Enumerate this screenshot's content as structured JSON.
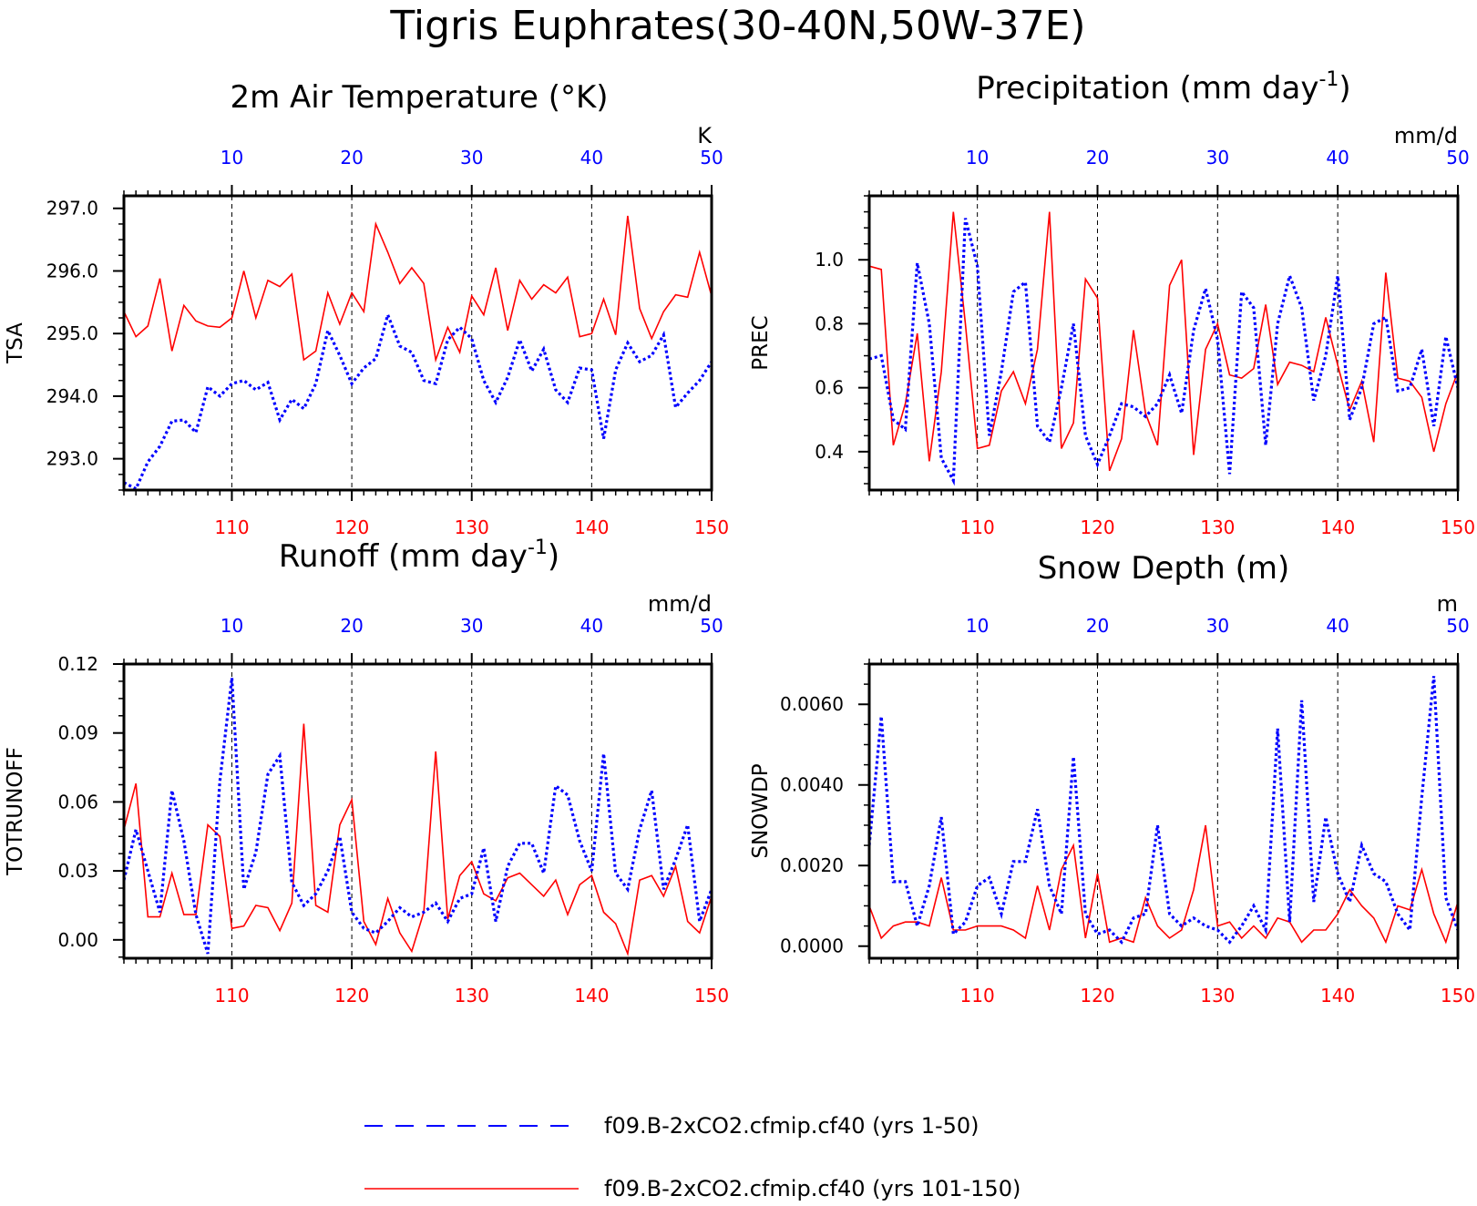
{
  "figure": {
    "title": "Tigris Euphrates(30-40N,50W-37E)",
    "legend": [
      {
        "label": "f09.B-2xCO2.cfmip.cf40 (yrs 1-50)",
        "color": "#0000ff",
        "style": "dashed"
      },
      {
        "label": "f09.B-2xCO2.cfmip.cf40 (yrs 101-150)",
        "color": "#ff0000",
        "style": "solid"
      }
    ],
    "colors": {
      "series_a": "#0000ff",
      "series_b": "#ff0000",
      "axis": "#000000"
    }
  },
  "chart_data": [
    {
      "type": "line",
      "title": "2m Air Temperature (°K)",
      "units_label": "K",
      "ylabel": "TSA",
      "ylim": [
        292.5,
        297.2
      ],
      "yticks": [
        293.0,
        294.0,
        295.0,
        296.0,
        297.0
      ],
      "ytick_labels": [
        "293.0",
        "294.0",
        "295.0",
        "296.0",
        "297.0"
      ],
      "top_axis": {
        "range": [
          1,
          50
        ],
        "ticks": [
          10,
          20,
          30,
          40,
          50
        ],
        "color": "#0000ff"
      },
      "bottom_axis": {
        "range": [
          101,
          150
        ],
        "ticks": [
          110,
          120,
          130,
          140,
          150
        ],
        "color": "#ff0000"
      },
      "grid": "dashed vertical at top ticks",
      "series": [
        {
          "name": "f09.B-2xCO2.cfmip.cf40 (yrs 1-50)",
          "x": "1-50",
          "values": [
            292.62,
            292.52,
            292.95,
            293.2,
            293.6,
            293.62,
            293.42,
            294.15,
            294.0,
            294.2,
            294.25,
            294.1,
            294.22,
            293.62,
            293.95,
            293.8,
            294.2,
            295.05,
            294.65,
            294.2,
            294.45,
            294.6,
            295.3,
            294.8,
            294.7,
            294.25,
            294.2,
            294.9,
            295.1,
            294.92,
            294.25,
            293.9,
            294.3,
            294.9,
            294.4,
            294.75,
            294.1,
            293.9,
            294.45,
            294.42,
            293.32,
            294.42,
            294.85,
            294.55,
            294.65,
            294.98,
            293.82,
            294.05,
            294.25,
            294.55
          ]
        },
        {
          "name": "f09.B-2xCO2.cfmip.cf40 (yrs 101-150)",
          "x": "101-150",
          "values": [
            295.35,
            294.95,
            295.12,
            295.88,
            294.72,
            295.45,
            295.2,
            295.12,
            295.1,
            295.25,
            296.0,
            295.25,
            295.85,
            295.75,
            295.95,
            294.58,
            294.72,
            295.65,
            295.15,
            295.65,
            295.35,
            296.75,
            296.3,
            295.8,
            296.05,
            295.8,
            294.58,
            295.1,
            294.7,
            295.6,
            295.3,
            296.05,
            295.05,
            295.85,
            295.55,
            295.78,
            295.65,
            295.9,
            294.95,
            295.0,
            295.55,
            294.98,
            296.88,
            295.4,
            294.92,
            295.35,
            295.62,
            295.58,
            296.3,
            295.6
          ]
        }
      ]
    },
    {
      "type": "line",
      "title": "Precipitation (mm day-1)",
      "units_label": "mm/d",
      "ylabel": "PREC",
      "ylim": [
        0.28,
        1.2
      ],
      "yticks": [
        0.4,
        0.6,
        0.8,
        1.0
      ],
      "ytick_labels": [
        "0.4",
        "0.6",
        "0.8",
        "1.0"
      ],
      "top_axis": {
        "range": [
          1,
          50
        ],
        "ticks": [
          10,
          20,
          30,
          40,
          50
        ],
        "color": "#0000ff"
      },
      "bottom_axis": {
        "range": [
          101,
          150
        ],
        "ticks": [
          110,
          120,
          130,
          140,
          150
        ],
        "color": "#ff0000"
      },
      "grid": "dashed vertical at top ticks",
      "series": [
        {
          "name": "f09.B-2xCO2.cfmip.cf40 (yrs 1-50)",
          "x": "1-50",
          "values": [
            0.69,
            0.7,
            0.5,
            0.47,
            0.99,
            0.8,
            0.38,
            0.31,
            1.13,
            0.98,
            0.45,
            0.65,
            0.9,
            0.93,
            0.48,
            0.43,
            0.6,
            0.8,
            0.45,
            0.36,
            0.45,
            0.55,
            0.54,
            0.51,
            0.55,
            0.64,
            0.52,
            0.78,
            0.91,
            0.75,
            0.33,
            0.9,
            0.85,
            0.42,
            0.8,
            0.95,
            0.85,
            0.56,
            0.7,
            0.95,
            0.5,
            0.6,
            0.8,
            0.82,
            0.59,
            0.6,
            0.72,
            0.48,
            0.76,
            0.6
          ]
        },
        {
          "name": "f09.B-2xCO2.cfmip.cf40 (yrs 101-150)",
          "x": "101-150",
          "values": [
            0.98,
            0.97,
            0.42,
            0.55,
            0.77,
            0.37,
            0.65,
            1.15,
            0.8,
            0.41,
            0.42,
            0.59,
            0.65,
            0.55,
            0.72,
            1.15,
            0.41,
            0.49,
            0.94,
            0.88,
            0.34,
            0.44,
            0.78,
            0.52,
            0.42,
            0.92,
            1.0,
            0.39,
            0.72,
            0.8,
            0.64,
            0.63,
            0.66,
            0.86,
            0.61,
            0.68,
            0.67,
            0.65,
            0.82,
            0.67,
            0.53,
            0.62,
            0.43,
            0.96,
            0.63,
            0.62,
            0.57,
            0.4,
            0.55,
            0.65
          ]
        }
      ]
    },
    {
      "type": "line",
      "title": "Runoff (mm day-1)",
      "units_label": "mm/d",
      "ylabel": "TOTRUNOFF",
      "ylim": [
        -0.008,
        0.12
      ],
      "yticks": [
        0.0,
        0.03,
        0.06,
        0.09,
        0.12
      ],
      "ytick_labels": [
        "0.00",
        "0.03",
        "0.06",
        "0.09",
        "0.12"
      ],
      "top_axis": {
        "range": [
          1,
          50
        ],
        "ticks": [
          10,
          20,
          30,
          40,
          50
        ],
        "color": "#0000ff"
      },
      "bottom_axis": {
        "range": [
          101,
          150
        ],
        "ticks": [
          110,
          120,
          130,
          140,
          150
        ],
        "color": "#ff0000"
      },
      "grid": "dashed vertical at top ticks",
      "series": [
        {
          "name": "f09.B-2xCO2.cfmip.cf40 (yrs 1-50)",
          "x": "1-50",
          "values": [
            0.026,
            0.048,
            0.03,
            0.012,
            0.065,
            0.043,
            0.011,
            -0.006,
            0.069,
            0.114,
            0.022,
            0.038,
            0.072,
            0.08,
            0.025,
            0.015,
            0.02,
            0.03,
            0.045,
            0.012,
            0.005,
            0.003,
            0.008,
            0.014,
            0.01,
            0.012,
            0.016,
            0.008,
            0.018,
            0.02,
            0.04,
            0.008,
            0.032,
            0.042,
            0.042,
            0.029,
            0.067,
            0.063,
            0.043,
            0.03,
            0.081,
            0.029,
            0.022,
            0.048,
            0.065,
            0.022,
            0.035,
            0.05,
            0.008,
            0.022
          ]
        },
        {
          "name": "f09.B-2xCO2.cfmip.cf40 (yrs 101-150)",
          "x": "101-150",
          "values": [
            0.048,
            0.068,
            0.01,
            0.01,
            0.029,
            0.011,
            0.011,
            0.05,
            0.045,
            0.005,
            0.006,
            0.015,
            0.014,
            0.004,
            0.016,
            0.094,
            0.015,
            0.012,
            0.05,
            0.061,
            0.008,
            -0.002,
            0.018,
            0.003,
            -0.005,
            0.012,
            0.082,
            0.009,
            0.028,
            0.034,
            0.02,
            0.017,
            0.027,
            0.029,
            0.024,
            0.019,
            0.026,
            0.011,
            0.024,
            0.028,
            0.012,
            0.007,
            -0.006,
            0.026,
            0.028,
            0.019,
            0.032,
            0.008,
            0.003,
            0.019
          ]
        }
      ]
    },
    {
      "type": "line",
      "title": "Snow Depth (m)",
      "units_label": "m",
      "ylabel": "SNOWDP",
      "ylim": [
        -0.0003,
        0.007
      ],
      "yticks": [
        0.0,
        0.002,
        0.004,
        0.006
      ],
      "ytick_labels": [
        "0.0000",
        "0.0020",
        "0.0040",
        "0.0060"
      ],
      "top_axis": {
        "range": [
          1,
          50
        ],
        "ticks": [
          10,
          20,
          30,
          40,
          50
        ],
        "color": "#0000ff"
      },
      "bottom_axis": {
        "range": [
          101,
          150
        ],
        "ticks": [
          110,
          120,
          130,
          140,
          150
        ],
        "color": "#ff0000"
      },
      "grid": "dashed vertical at top ticks",
      "series": [
        {
          "name": "f09.B-2xCO2.cfmip.cf40 (yrs 1-50)",
          "x": "1-50",
          "values": [
            0.0025,
            0.0057,
            0.0016,
            0.0016,
            0.0005,
            0.0015,
            0.0032,
            0.0003,
            0.0006,
            0.0015,
            0.0017,
            0.0008,
            0.0021,
            0.0021,
            0.0034,
            0.0015,
            0.0008,
            0.0047,
            0.0008,
            0.0003,
            0.0004,
            0.0001,
            0.0007,
            0.0008,
            0.003,
            0.0008,
            0.0005,
            0.0007,
            0.0005,
            0.0004,
            0.0001,
            0.0005,
            0.001,
            0.0004,
            0.0054,
            0.0006,
            0.0061,
            0.0011,
            0.0032,
            0.0018,
            0.0011,
            0.0025,
            0.0018,
            0.0016,
            0.0008,
            0.0004,
            0.0037,
            0.0067,
            0.0012,
            0.0004
          ]
        },
        {
          "name": "f09.B-2xCO2.cfmip.cf40 (yrs 101-150)",
          "x": "101-150",
          "values": [
            0.001,
            0.0002,
            0.0005,
            0.0006,
            0.0006,
            0.0005,
            0.0017,
            0.0004,
            0.0004,
            0.0005,
            0.0005,
            0.0005,
            0.0004,
            0.0002,
            0.0015,
            0.0004,
            0.0019,
            0.0025,
            0.0002,
            0.0018,
            0.0001,
            0.0002,
            0.0001,
            0.0012,
            0.0005,
            0.0002,
            0.0004,
            0.0014,
            0.003,
            0.0005,
            0.0006,
            0.0002,
            0.0005,
            0.0002,
            0.0007,
            0.0006,
            0.0001,
            0.0004,
            0.0004,
            0.0008,
            0.0014,
            0.001,
            0.0007,
            0.0001,
            0.001,
            0.0009,
            0.0019,
            0.0008,
            0.0001,
            0.0011
          ]
        }
      ]
    }
  ]
}
